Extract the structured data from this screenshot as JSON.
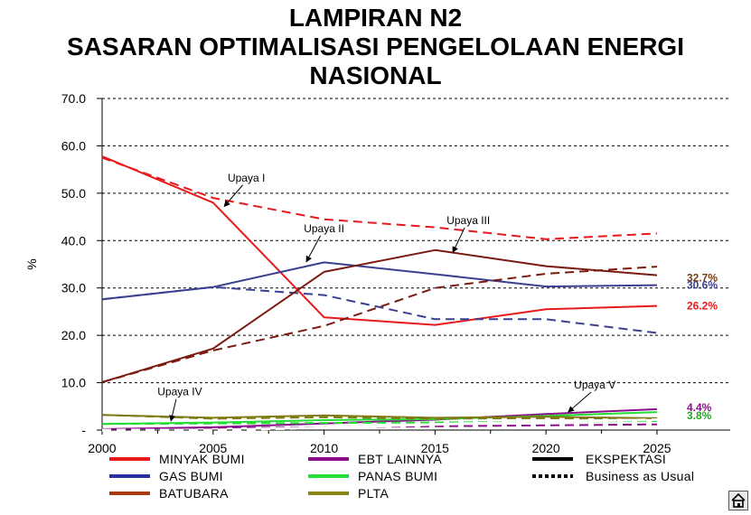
{
  "title_lines": [
    "LAMPIRAN N2",
    "SASARAN OPTIMALISASI PENGELOLAAN ENERGI",
    "NASIONAL"
  ],
  "chart_data": {
    "type": "line",
    "ylabel": "%",
    "ylim": [
      0,
      70
    ],
    "y_ticks": [
      "70.0",
      "60.0",
      "50.0",
      "40.0",
      "30.0",
      "20.0",
      "10.0",
      "-"
    ],
    "y_tick_values": [
      70,
      60,
      50,
      40,
      30,
      20,
      10,
      0
    ],
    "x": [
      2000,
      2005,
      2010,
      2015,
      2020,
      2025
    ],
    "x_ticks": [
      "2000",
      "2005",
      "2010",
      "2015",
      "2020",
      "2025"
    ],
    "grid": "horizontal dashed",
    "series": [
      {
        "name": "MINYAK BUMI",
        "color": "#e8191a",
        "style": "solid",
        "values": [
          57.8,
          48.0,
          23.8,
          22.2,
          25.5,
          26.2
        ]
      },
      {
        "name": "MINYAK BUMI",
        "color": "#e8191a",
        "style": "dashed",
        "values": [
          57.5,
          49.0,
          44.5,
          42.8,
          40.3,
          41.5
        ]
      },
      {
        "name": "GAS BUMI",
        "color": "#3b3f8f",
        "style": "solid",
        "values": [
          27.6,
          30.2,
          35.4,
          32.9,
          30.3,
          30.6
        ]
      },
      {
        "name": "GAS BUMI",
        "color": "#3b3f8f",
        "style": "dashed",
        "values": [
          27.6,
          30.2,
          28.5,
          23.4,
          23.4,
          20.5
        ]
      },
      {
        "name": "BATUBARA",
        "color": "#7a1a10",
        "style": "solid",
        "values": [
          10.1,
          17.2,
          33.4,
          38.0,
          34.6,
          32.7
        ]
      },
      {
        "name": "BATUBARA",
        "color": "#7a1a10",
        "style": "dashed",
        "values": [
          10.1,
          16.8,
          22.0,
          30.0,
          33.0,
          34.5
        ]
      },
      {
        "name": "EBT LAINNYA",
        "color": "#8b0e8b",
        "style": "solid",
        "values": [
          0.2,
          0.6,
          1.4,
          2.2,
          3.4,
          4.4
        ]
      },
      {
        "name": "EBT LAINNYA",
        "color": "#8b0e8b",
        "style": "dashed",
        "values": [
          0.2,
          0.4,
          0.6,
          0.8,
          1.0,
          1.2
        ]
      },
      {
        "name": "PANAS BUMI",
        "color": "#22dd33",
        "style": "solid",
        "values": [
          1.3,
          1.6,
          2.1,
          2.3,
          3.0,
          3.8
        ]
      },
      {
        "name": "PANAS BUMI",
        "color": "#22dd33",
        "style": "dashed",
        "values": [
          1.3,
          1.4,
          1.5,
          1.6,
          1.8,
          1.9
        ]
      },
      {
        "name": "PLTA",
        "color": "#7f7a14",
        "style": "solid",
        "values": [
          3.2,
          2.6,
          3.1,
          2.6,
          2.8,
          2.5
        ]
      },
      {
        "name": "PLTA",
        "color": "#7f7a14",
        "style": "dashed",
        "values": [
          3.2,
          2.4,
          2.7,
          2.4,
          2.5,
          2.3
        ]
      },
      {
        "name": "Business as Usual",
        "color": "#ffffff",
        "style": "dashed",
        "values": [
          0.0,
          0.0,
          0.5,
          1.2,
          1.8,
          2.2
        ]
      }
    ],
    "annotations": [
      {
        "text": "Upaya I",
        "x": 2006.5,
        "y": 52.5,
        "arrow_to_x": 2005.5,
        "arrow_to_y": 47.2
      },
      {
        "text": "Upaya II",
        "x": 2010,
        "y": 41.8,
        "arrow_to_x": 2009.2,
        "arrow_to_y": 35.5
      },
      {
        "text": "Upaya III",
        "x": 2016.5,
        "y": 43.5,
        "arrow_to_x": 2015.8,
        "arrow_to_y": 37.5
      },
      {
        "text": "Upaya IV",
        "x": 2003.5,
        "y": 7.3,
        "arrow_to_x": 2003.1,
        "arrow_to_y": 1.9
      },
      {
        "text": "Upaya V",
        "x": 2022.2,
        "y": 8.8,
        "arrow_to_x": 2021.0,
        "arrow_to_y": 3.8
      }
    ],
    "end_labels": [
      {
        "text": "32.7%",
        "value": 32.7,
        "color": "#7a3c14"
      },
      {
        "text": "30.6%",
        "value": 30.6,
        "color": "#3b3f8f"
      },
      {
        "text": "26.2%",
        "value": 26.2,
        "color": "#e8191a"
      },
      {
        "text": "4.4%",
        "value": 4.4,
        "color": "#8b0e8b"
      },
      {
        "text": "3.8%",
        "value": 3.8,
        "color": "#22aa22"
      }
    ],
    "legend": [
      {
        "label": "MINYAK BUMI",
        "color": "#e8191a",
        "style": "solid"
      },
      {
        "label": "EBT LAINNYA",
        "color": "#8b0e8b",
        "style": "solid"
      },
      {
        "label": "EKSPEKTASI",
        "color": "#000000",
        "style": "solid"
      },
      {
        "label": "GAS BUMI",
        "color": "#2b2f9f",
        "style": "solid"
      },
      {
        "label": "PANAS BUMI",
        "color": "#22dd33",
        "style": "solid"
      },
      {
        "label": "Business as Usual",
        "color": "#000000",
        "style": "dashed"
      },
      {
        "label": "BATUBARA",
        "color": "#a83a10",
        "style": "solid"
      },
      {
        "label": "PLTA",
        "color": "#8a8414",
        "style": "solid"
      }
    ]
  },
  "home_button": {
    "icon": "home-icon"
  }
}
